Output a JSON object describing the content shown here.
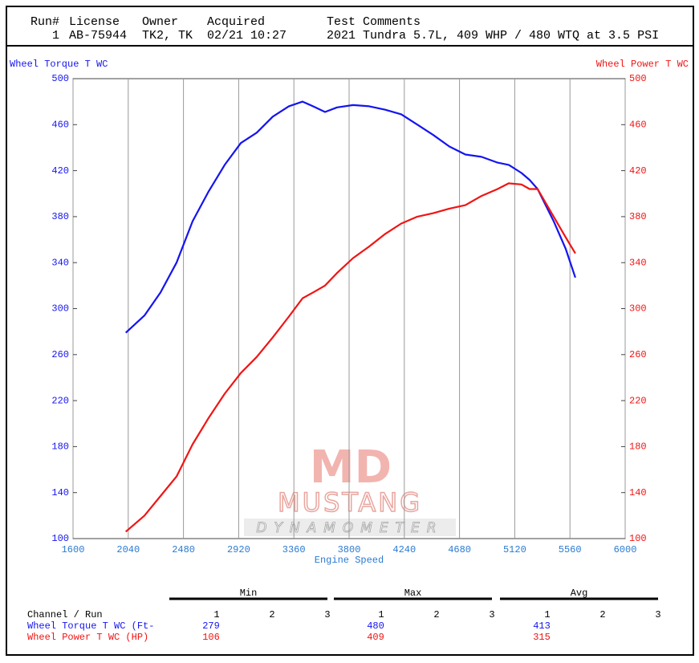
{
  "header": {
    "columns": [
      "Run#",
      "License",
      "Owner",
      "Acquired",
      "Test Comments"
    ],
    "row": [
      "1",
      "AB-75944",
      "TK2, TK",
      "02/21 10:27",
      "2021 Tundra 5.7L, 409 WHP / 480 WTQ at 3.5 PSI"
    ]
  },
  "chart_data": {
    "type": "line",
    "xlabel": "Engine Speed",
    "ylabel": "Wheel Torque T WC",
    "y2label": "Wheel Power T WC",
    "x": [
      2020,
      2169,
      2297,
      2425,
      2553,
      2681,
      2809,
      2937,
      3064,
      3192,
      3320,
      3429,
      3512,
      3608,
      3704,
      3832,
      3960,
      4088,
      4216,
      4344,
      4471,
      4599,
      4727,
      4855,
      4983,
      5072,
      5174,
      5238,
      5302,
      5430,
      5526,
      5603
    ],
    "series": [
      {
        "name": "Wheel Torque T WC",
        "color": "#1414f0",
        "values": [
          279,
          294,
          314,
          340,
          376,
          402,
          425,
          444,
          453,
          467,
          476,
          480,
          476,
          471,
          475,
          477,
          476,
          473,
          469,
          460,
          451,
          441,
          434,
          432,
          427,
          425,
          418,
          412,
          404,
          376,
          352,
          327
        ]
      },
      {
        "name": "Wheel Power T WC",
        "color": "#f01414",
        "axis": "y2",
        "values": [
          106,
          120,
          137,
          154,
          182,
          205,
          226,
          244,
          258,
          275,
          293,
          309,
          314,
          320,
          331,
          344,
          354,
          365,
          374,
          380,
          383,
          387,
          390,
          398,
          404,
          409,
          408,
          404,
          404,
          380,
          362,
          348
        ]
      }
    ],
    "xlim": [
      1600,
      6000
    ],
    "xticks": [
      1600,
      2040,
      2480,
      2920,
      3360,
      3800,
      4240,
      4680,
      5120,
      5560,
      6000
    ],
    "ylim": [
      100,
      500
    ],
    "yticks": [
      100,
      140,
      180,
      220,
      260,
      300,
      340,
      380,
      420,
      460,
      500
    ],
    "y2lim": [
      100,
      500
    ],
    "y2ticks": [
      100,
      140,
      180,
      220,
      260,
      300,
      340,
      380,
      420,
      460,
      500
    ],
    "grid": "x"
  },
  "logo": {
    "mark": "MD",
    "name": "MUSTANG",
    "subtitle": "DYNAMOMETER"
  },
  "stats": {
    "groups": [
      "Min",
      "Max",
      "Avg"
    ],
    "runs": [
      "1",
      "2",
      "3"
    ],
    "header": "Channel / Run",
    "rows": [
      {
        "name": "Wheel Torque T WC (Ft-",
        "values": [
          279,
          480,
          413
        ]
      },
      {
        "name": "Wheel Power T WC (HP)",
        "values": [
          106,
          409,
          315
        ]
      }
    ]
  }
}
